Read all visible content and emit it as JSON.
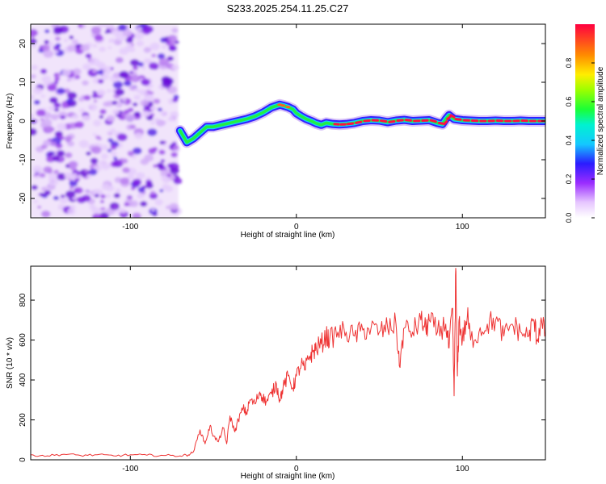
{
  "title": "S233.2025.254.11.25.C27",
  "chart_data": [
    {
      "type": "heatmap",
      "title": "S233.2025.254.11.25.C27",
      "xlabel": "Height of straight line (km)",
      "ylabel": "Frequency (Hz)",
      "xlim": [
        -160,
        150
      ],
      "ylim": [
        -25,
        25
      ],
      "xticks": [
        -100,
        0,
        100
      ],
      "yticks": [
        -20,
        -10,
        0,
        10,
        20
      ],
      "noise_region_x": [
        -160,
        -71
      ],
      "ridge": {
        "description": "Peak frequency track vs height",
        "x": [
          -70,
          -66,
          -62,
          -58,
          -54,
          -50,
          -45,
          -40,
          -35,
          -30,
          -25,
          -20,
          -15,
          -10,
          -8,
          -5,
          -2,
          0,
          3,
          6,
          9,
          12,
          15,
          18,
          22,
          26,
          30,
          35,
          40,
          45,
          50,
          55,
          60,
          65,
          70,
          75,
          80,
          85,
          88,
          90,
          92,
          95,
          100,
          105,
          110,
          115,
          120,
          125,
          130,
          135,
          140,
          145,
          150
        ],
        "y": [
          -2.5,
          -5.5,
          -4.5,
          -3,
          -1.5,
          -1.5,
          -1,
          -0.5,
          0,
          0.5,
          1.2,
          2.2,
          3.5,
          4.2,
          4.0,
          3.6,
          3.0,
          2.0,
          1.2,
          0.5,
          0.0,
          -0.6,
          -1.0,
          -0.5,
          -0.8,
          -0.9,
          -0.8,
          -0.5,
          0.0,
          0.2,
          0.1,
          -0.3,
          0.1,
          0.3,
          0.0,
          0.1,
          0.2,
          -0.5,
          -0.8,
          0.5,
          1.5,
          0.5,
          0.2,
          0.1,
          0.0,
          0.0,
          0.1,
          0.0,
          0.0,
          0.1,
          0.0,
          0.0,
          0.0
        ]
      },
      "colorbar": {
        "label": "Normalized spectral amplitude",
        "ticks": [
          "0.0",
          "0.2",
          "0.4",
          "0.6",
          "0.8"
        ],
        "range": [
          0,
          1
        ]
      }
    },
    {
      "type": "line",
      "xlabel": "Height of straight line (km)",
      "ylabel": "SNR (10 * v/v)",
      "xlim": [
        -160,
        150
      ],
      "ylim": [
        0,
        970
      ],
      "xticks": [
        -100,
        0,
        100
      ],
      "yticks": [
        0,
        200,
        400,
        600,
        800
      ],
      "color": "#ee3333",
      "series": [
        {
          "name": "SNR",
          "x": [
            -160,
            -150,
            -140,
            -130,
            -120,
            -110,
            -100,
            -90,
            -80,
            -70,
            -65,
            -62,
            -58,
            -55,
            -52,
            -50,
            -47,
            -44,
            -42,
            -40,
            -37,
            -35,
            -32,
            -30,
            -28,
            -25,
            -22,
            -20,
            -18,
            -15,
            -12,
            -10,
            -8,
            -5,
            -2,
            0,
            3,
            5,
            8,
            10,
            12,
            15,
            18,
            20,
            25,
            30,
            35,
            40,
            45,
            50,
            55,
            60,
            62,
            65,
            70,
            75,
            78,
            80,
            85,
            90,
            92,
            94,
            95,
            96,
            97,
            98,
            100,
            103,
            105,
            110,
            115,
            120,
            125,
            130,
            135,
            140,
            143,
            145,
            147,
            150
          ],
          "y": [
            25,
            20,
            28,
            22,
            25,
            20,
            25,
            23,
            22,
            20,
            25,
            40,
            150,
            80,
            170,
            120,
            90,
            160,
            80,
            220,
            140,
            200,
            260,
            230,
            300,
            280,
            340,
            310,
            290,
            330,
            380,
            300,
            360,
            420,
            360,
            420,
            480,
            450,
            520,
            540,
            560,
            580,
            620,
            600,
            640,
            640,
            620,
            650,
            660,
            640,
            660,
            680,
            470,
            660,
            640,
            700,
            650,
            700,
            640,
            680,
            560,
            760,
            320,
            960,
            420,
            700,
            600,
            720,
            600,
            640,
            680,
            700,
            620,
            680,
            640,
            620,
            700,
            600,
            680,
            640
          ]
        }
      ]
    }
  ]
}
